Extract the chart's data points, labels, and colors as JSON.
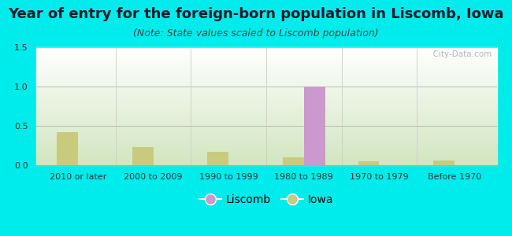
{
  "categories": [
    "2010 or later",
    "2000 to 2009",
    "1990 to 1999",
    "1980 to 1989",
    "1970 to 1979",
    "Before 1970"
  ],
  "liscomb_values": [
    0,
    0,
    0,
    1.0,
    0,
    0
  ],
  "iowa_values": [
    0.42,
    0.23,
    0.17,
    0.1,
    0.05,
    0.06
  ],
  "liscomb_color": "#cc99cc",
  "iowa_color": "#c8ca7e",
  "title": "Year of entry for the foreign-born population in Liscomb, Iowa",
  "subtitle": "(Note: State values scaled to Liscomb population)",
  "ylim": [
    0,
    1.5
  ],
  "yticks": [
    0,
    0.5,
    1.0,
    1.5
  ],
  "background_outer": "#00ecec",
  "bar_width": 0.28,
  "title_fontsize": 13,
  "subtitle_fontsize": 9,
  "tick_fontsize": 8,
  "legend_fontsize": 10
}
